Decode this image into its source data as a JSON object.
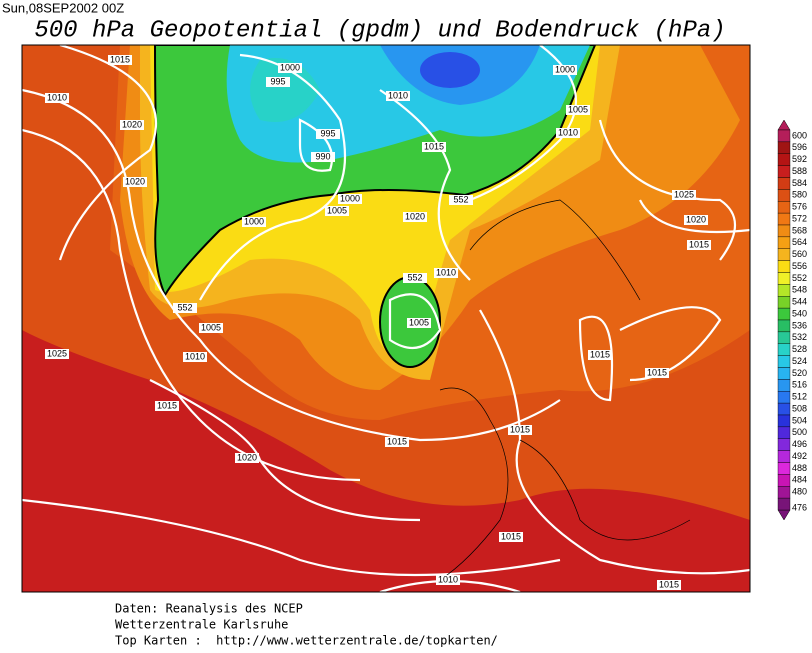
{
  "header": {
    "timestamp": "Sun,08SEP2002 00Z",
    "title": "500 hPa Geopotential (gpdm) und Bodendruck (hPa)"
  },
  "contour_labels": [
    1015,
    1010,
    1020,
    1020,
    1000,
    995,
    1010,
    1000,
    1005,
    1010,
    995,
    990,
    1015,
    1000,
    1005,
    1000,
    1020,
    552,
    1025,
    1020,
    1015,
    552,
    1010,
    1005,
    552,
    1005,
    1010,
    1025,
    1015,
    1015,
    1015,
    1015,
    1015,
    1020,
    1015,
    1010,
    1015
  ],
  "colorbar": {
    "labels": [
      600,
      596,
      592,
      588,
      584,
      580,
      576,
      572,
      568,
      564,
      560,
      556,
      552,
      548,
      544,
      540,
      536,
      532,
      528,
      524,
      520,
      516,
      512,
      508,
      504,
      500,
      496,
      492,
      488,
      484,
      480,
      476
    ],
    "colors": [
      "#b41e5a",
      "#a01414",
      "#b41414",
      "#c81e1e",
      "#d23c14",
      "#dc5014",
      "#e66414",
      "#f07814",
      "#f08c14",
      "#f5a014",
      "#f5b41e",
      "#fadc14",
      "#f0f028",
      "#b4e628",
      "#78d228",
      "#3cc83c",
      "#28be64",
      "#28c896",
      "#28d2c8",
      "#28c8e6",
      "#28b4f0",
      "#2896f0",
      "#2878f0",
      "#2850e6",
      "#2832dc",
      "#5028dc",
      "#8228dc",
      "#b428dc",
      "#dc28dc",
      "#c814b4",
      "#a01496",
      "#781478"
    ]
  },
  "footer": {
    "lines": [
      "Daten: Reanalysis des NCEP",
      "Wetterzentrale Karlsruhe",
      "Top Karten :  http://www.wetterzentrale.de/topkarten/"
    ]
  }
}
